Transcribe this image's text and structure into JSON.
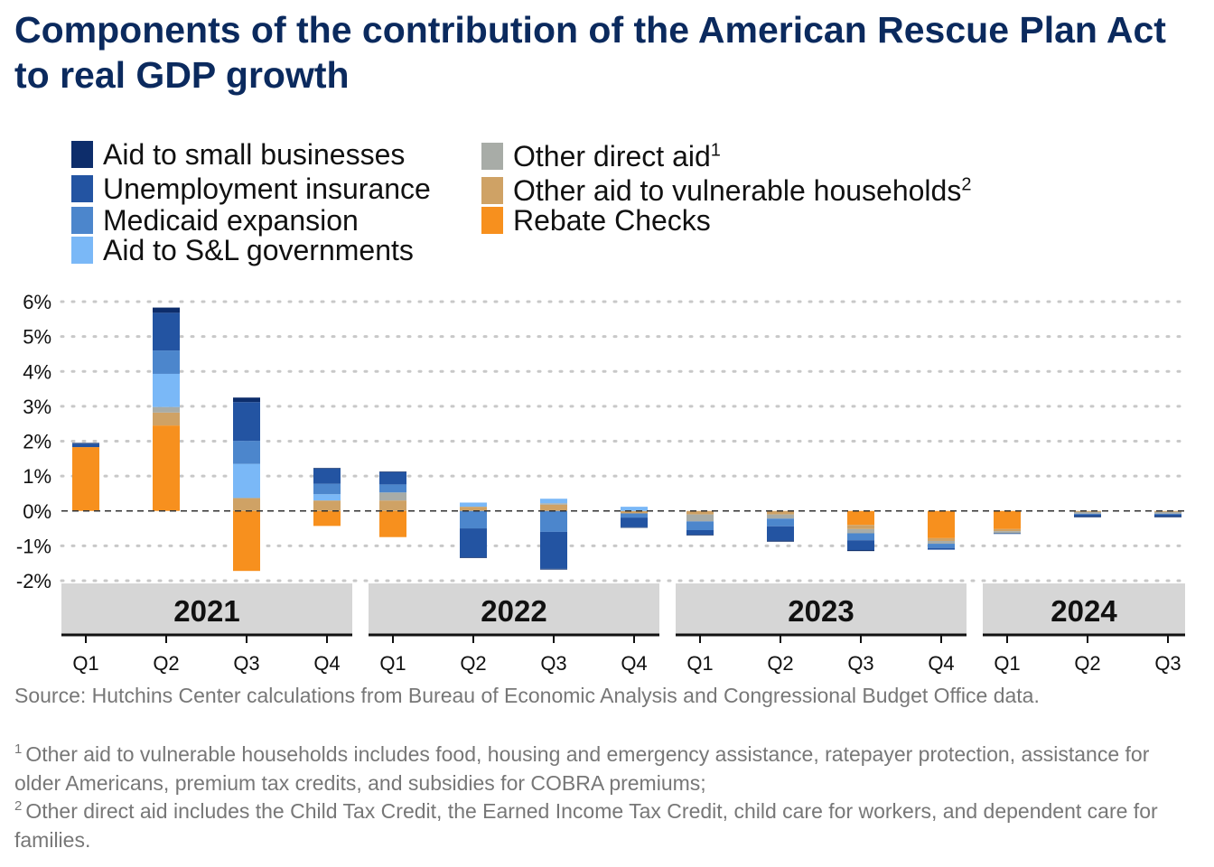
{
  "title": "Components of the contribution of the American Rescue Plan Act to real GDP growth",
  "legend": [
    {
      "name": "Aid to small businesses",
      "sup": "",
      "color": "#0d2d6b"
    },
    {
      "name": "Unemployment insurance",
      "sup": "",
      "color": "#2354a2"
    },
    {
      "name": "Medicaid expansion",
      "sup": "",
      "color": "#4c86cc"
    },
    {
      "name": "Aid to S&L governments",
      "sup": "",
      "color": "#7ab8f7"
    },
    {
      "name": "Other direct aid",
      "sup": "1",
      "color": "#a8aca7"
    },
    {
      "name": "Other aid to vulnerable households",
      "sup": "2",
      "color": "#cfa265"
    },
    {
      "name": "Rebate Checks",
      "sup": "",
      "color": "#f7901e"
    }
  ],
  "source": "Source: Hutchins Center calculations from Bureau of Economic Analysis and Congressional Budget Office data.",
  "notes": [
    {
      "num": "1",
      "text": "Other aid to vulnerable households includes food, housing and emergency assistance, ratepayer protection, assistance for older Americans, premium tax credits, and subsidies for COBRA premiums;"
    },
    {
      "num": "2",
      "text": "Other direct aid includes the Child Tax Credit, the Earned Income Tax Credit, child care for workers, and dependent care for families."
    }
  ],
  "chart_data": {
    "type": "bar",
    "stacked": true,
    "ylim": [
      -2,
      6
    ],
    "yticks": [
      6,
      5,
      4,
      3,
      2,
      1,
      0,
      -1,
      -2
    ],
    "ytick_labels": [
      "6%",
      "5%",
      "4%",
      "3%",
      "2%",
      "1%",
      "0%",
      "-1%",
      "-2%"
    ],
    "grid": "horizontal-dotted",
    "zero_line": "dashed",
    "years": [
      {
        "label": "2021",
        "quarters": [
          "Q1",
          "Q2",
          "Q3",
          "Q4"
        ]
      },
      {
        "label": "2022",
        "quarters": [
          "Q1",
          "Q2",
          "Q3",
          "Q4"
        ]
      },
      {
        "label": "2023",
        "quarters": [
          "Q1",
          "Q2",
          "Q3",
          "Q4"
        ]
      },
      {
        "label": "2024",
        "quarters": [
          "Q1",
          "Q2",
          "Q3"
        ]
      }
    ],
    "categories": [
      "2021 Q1",
      "2021 Q2",
      "2021 Q3",
      "2021 Q4",
      "2022 Q1",
      "2022 Q2",
      "2022 Q3",
      "2022 Q4",
      "2023 Q1",
      "2023 Q2",
      "2023 Q3",
      "2023 Q4",
      "2024 Q1",
      "2024 Q2",
      "2024 Q3"
    ],
    "series": [
      {
        "name": "Rebate Checks",
        "color": "#f7901e",
        "values": [
          1.83,
          2.45,
          -1.72,
          -0.43,
          -0.75,
          0,
          0,
          0,
          0,
          0,
          -0.4,
          -0.78,
          -0.52,
          0,
          0
        ]
      },
      {
        "name": "Other aid to vulnerable households",
        "color": "#cfa265",
        "values": [
          0,
          0.37,
          0.37,
          0.3,
          0.3,
          0.12,
          0.18,
          -0.07,
          -0.1,
          -0.1,
          -0.12,
          -0.08,
          -0.06,
          -0.03,
          -0.03
        ]
      },
      {
        "name": "Other direct aid",
        "color": "#a8aca7",
        "values": [
          0,
          0.16,
          0,
          0,
          0.23,
          0,
          0.04,
          0,
          -0.2,
          -0.12,
          -0.12,
          -0.08,
          -0.06,
          -0.05,
          -0.05
        ]
      },
      {
        "name": "Aid to S&L governments",
        "color": "#7ab8f7",
        "values": [
          0,
          0.95,
          0.98,
          0.18,
          0,
          0.12,
          0.13,
          0.12,
          0,
          0,
          0,
          0,
          0,
          0,
          0
        ]
      },
      {
        "name": "Medicaid expansion",
        "color": "#4c86cc",
        "values": [
          0,
          0.67,
          0.66,
          0.3,
          0.23,
          -0.5,
          -0.6,
          -0.12,
          -0.25,
          -0.22,
          -0.2,
          -0.12,
          0,
          -0.02,
          -0.02
        ]
      },
      {
        "name": "Unemployment insurance",
        "color": "#2354a2",
        "values": [
          0.1,
          1.08,
          1.11,
          0.43,
          0.35,
          -0.83,
          -1.06,
          -0.28,
          -0.13,
          -0.41,
          -0.28,
          -0.05,
          -0.02,
          -0.05,
          -0.05
        ]
      },
      {
        "name": "Aid to small businesses",
        "color": "#0d2d6b",
        "values": [
          0.02,
          0.15,
          0.13,
          0.02,
          0.02,
          -0.02,
          -0.02,
          -0.01,
          -0.02,
          -0.03,
          -0.03,
          0,
          0,
          -0.03,
          -0.03
        ]
      }
    ]
  }
}
